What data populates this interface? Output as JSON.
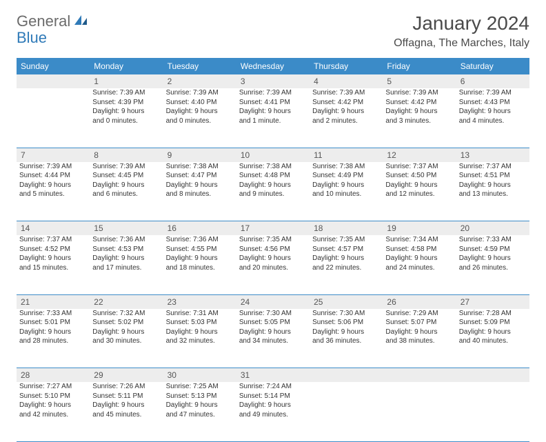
{
  "logo": {
    "part1": "General",
    "part2": "Blue"
  },
  "title": "January 2024",
  "location": "Offagna, The Marches, Italy",
  "header_bg": "#3b8bc8",
  "daynum_bg": "#ededed",
  "text_color": "#333333",
  "days": [
    "Sunday",
    "Monday",
    "Tuesday",
    "Wednesday",
    "Thursday",
    "Friday",
    "Saturday"
  ],
  "weeks": [
    [
      null,
      {
        "n": "1",
        "sr": "Sunrise: 7:39 AM",
        "ss": "Sunset: 4:39 PM",
        "d1": "Daylight: 9 hours",
        "d2": "and 0 minutes."
      },
      {
        "n": "2",
        "sr": "Sunrise: 7:39 AM",
        "ss": "Sunset: 4:40 PM",
        "d1": "Daylight: 9 hours",
        "d2": "and 0 minutes."
      },
      {
        "n": "3",
        "sr": "Sunrise: 7:39 AM",
        "ss": "Sunset: 4:41 PM",
        "d1": "Daylight: 9 hours",
        "d2": "and 1 minute."
      },
      {
        "n": "4",
        "sr": "Sunrise: 7:39 AM",
        "ss": "Sunset: 4:42 PM",
        "d1": "Daylight: 9 hours",
        "d2": "and 2 minutes."
      },
      {
        "n": "5",
        "sr": "Sunrise: 7:39 AM",
        "ss": "Sunset: 4:42 PM",
        "d1": "Daylight: 9 hours",
        "d2": "and 3 minutes."
      },
      {
        "n": "6",
        "sr": "Sunrise: 7:39 AM",
        "ss": "Sunset: 4:43 PM",
        "d1": "Daylight: 9 hours",
        "d2": "and 4 minutes."
      }
    ],
    [
      {
        "n": "7",
        "sr": "Sunrise: 7:39 AM",
        "ss": "Sunset: 4:44 PM",
        "d1": "Daylight: 9 hours",
        "d2": "and 5 minutes."
      },
      {
        "n": "8",
        "sr": "Sunrise: 7:39 AM",
        "ss": "Sunset: 4:45 PM",
        "d1": "Daylight: 9 hours",
        "d2": "and 6 minutes."
      },
      {
        "n": "9",
        "sr": "Sunrise: 7:38 AM",
        "ss": "Sunset: 4:47 PM",
        "d1": "Daylight: 9 hours",
        "d2": "and 8 minutes."
      },
      {
        "n": "10",
        "sr": "Sunrise: 7:38 AM",
        "ss": "Sunset: 4:48 PM",
        "d1": "Daylight: 9 hours",
        "d2": "and 9 minutes."
      },
      {
        "n": "11",
        "sr": "Sunrise: 7:38 AM",
        "ss": "Sunset: 4:49 PM",
        "d1": "Daylight: 9 hours",
        "d2": "and 10 minutes."
      },
      {
        "n": "12",
        "sr": "Sunrise: 7:37 AM",
        "ss": "Sunset: 4:50 PM",
        "d1": "Daylight: 9 hours",
        "d2": "and 12 minutes."
      },
      {
        "n": "13",
        "sr": "Sunrise: 7:37 AM",
        "ss": "Sunset: 4:51 PM",
        "d1": "Daylight: 9 hours",
        "d2": "and 13 minutes."
      }
    ],
    [
      {
        "n": "14",
        "sr": "Sunrise: 7:37 AM",
        "ss": "Sunset: 4:52 PM",
        "d1": "Daylight: 9 hours",
        "d2": "and 15 minutes."
      },
      {
        "n": "15",
        "sr": "Sunrise: 7:36 AM",
        "ss": "Sunset: 4:53 PM",
        "d1": "Daylight: 9 hours",
        "d2": "and 17 minutes."
      },
      {
        "n": "16",
        "sr": "Sunrise: 7:36 AM",
        "ss": "Sunset: 4:55 PM",
        "d1": "Daylight: 9 hours",
        "d2": "and 18 minutes."
      },
      {
        "n": "17",
        "sr": "Sunrise: 7:35 AM",
        "ss": "Sunset: 4:56 PM",
        "d1": "Daylight: 9 hours",
        "d2": "and 20 minutes."
      },
      {
        "n": "18",
        "sr": "Sunrise: 7:35 AM",
        "ss": "Sunset: 4:57 PM",
        "d1": "Daylight: 9 hours",
        "d2": "and 22 minutes."
      },
      {
        "n": "19",
        "sr": "Sunrise: 7:34 AM",
        "ss": "Sunset: 4:58 PM",
        "d1": "Daylight: 9 hours",
        "d2": "and 24 minutes."
      },
      {
        "n": "20",
        "sr": "Sunrise: 7:33 AM",
        "ss": "Sunset: 4:59 PM",
        "d1": "Daylight: 9 hours",
        "d2": "and 26 minutes."
      }
    ],
    [
      {
        "n": "21",
        "sr": "Sunrise: 7:33 AM",
        "ss": "Sunset: 5:01 PM",
        "d1": "Daylight: 9 hours",
        "d2": "and 28 minutes."
      },
      {
        "n": "22",
        "sr": "Sunrise: 7:32 AM",
        "ss": "Sunset: 5:02 PM",
        "d1": "Daylight: 9 hours",
        "d2": "and 30 minutes."
      },
      {
        "n": "23",
        "sr": "Sunrise: 7:31 AM",
        "ss": "Sunset: 5:03 PM",
        "d1": "Daylight: 9 hours",
        "d2": "and 32 minutes."
      },
      {
        "n": "24",
        "sr": "Sunrise: 7:30 AM",
        "ss": "Sunset: 5:05 PM",
        "d1": "Daylight: 9 hours",
        "d2": "and 34 minutes."
      },
      {
        "n": "25",
        "sr": "Sunrise: 7:30 AM",
        "ss": "Sunset: 5:06 PM",
        "d1": "Daylight: 9 hours",
        "d2": "and 36 minutes."
      },
      {
        "n": "26",
        "sr": "Sunrise: 7:29 AM",
        "ss": "Sunset: 5:07 PM",
        "d1": "Daylight: 9 hours",
        "d2": "and 38 minutes."
      },
      {
        "n": "27",
        "sr": "Sunrise: 7:28 AM",
        "ss": "Sunset: 5:09 PM",
        "d1": "Daylight: 9 hours",
        "d2": "and 40 minutes."
      }
    ],
    [
      {
        "n": "28",
        "sr": "Sunrise: 7:27 AM",
        "ss": "Sunset: 5:10 PM",
        "d1": "Daylight: 9 hours",
        "d2": "and 42 minutes."
      },
      {
        "n": "29",
        "sr": "Sunrise: 7:26 AM",
        "ss": "Sunset: 5:11 PM",
        "d1": "Daylight: 9 hours",
        "d2": "and 45 minutes."
      },
      {
        "n": "30",
        "sr": "Sunrise: 7:25 AM",
        "ss": "Sunset: 5:13 PM",
        "d1": "Daylight: 9 hours",
        "d2": "and 47 minutes."
      },
      {
        "n": "31",
        "sr": "Sunrise: 7:24 AM",
        "ss": "Sunset: 5:14 PM",
        "d1": "Daylight: 9 hours",
        "d2": "and 49 minutes."
      },
      null,
      null,
      null
    ]
  ]
}
